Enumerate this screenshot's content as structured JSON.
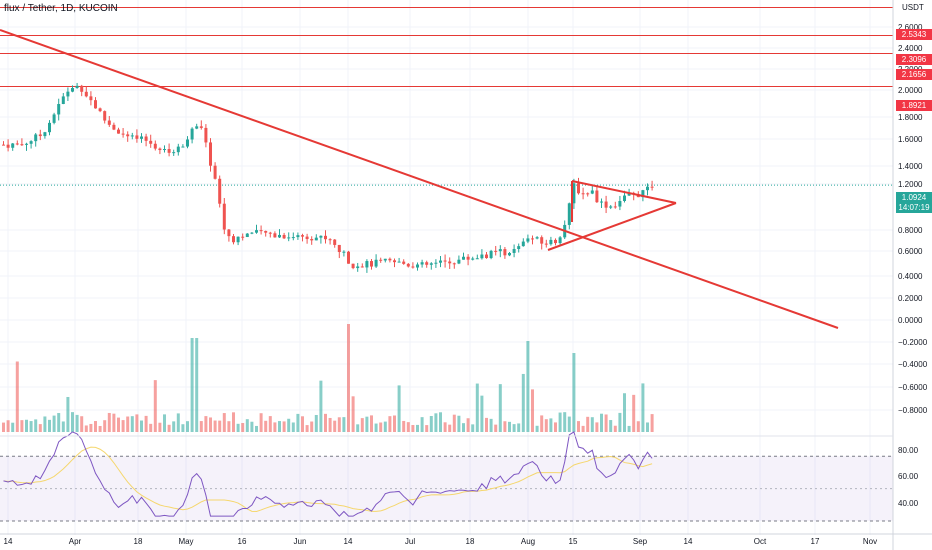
{
  "header": {
    "title": "flux / Tether, 1D, KUCOIN",
    "currency": "USDT"
  },
  "price_tags": {
    "level_1": {
      "label": "2.5343",
      "color": "#f23645"
    },
    "level_2": {
      "label": "2.3096",
      "color": "#f23645"
    },
    "level_3": {
      "label": "2.1656",
      "color": "#f23645"
    },
    "level_4": {
      "label": "1.8921",
      "color": "#f23645"
    },
    "last_price": {
      "label": "1.0924",
      "color": "#26a69a"
    },
    "countdown": {
      "label": "14:07:19",
      "color": "#26a69a"
    }
  },
  "colors": {
    "up": "#26a69a",
    "down": "#ef5350",
    "trendline": "#e53935",
    "rsi": "#7e57c2",
    "rsi_ma": "#f5d76e"
  },
  "chart_data": {
    "type": "candlestick",
    "price_axis_ticks": [
      "2.6000",
      "2.4000",
      "2.2000",
      "2.0000",
      "1.8000",
      "1.6000",
      "1.4000",
      "1.2000",
      "0.8000",
      "0.6000",
      "0.4000",
      "0.2000",
      "0.0000",
      "−0.2000",
      "−0.4000",
      "−0.6000",
      "−0.8000"
    ],
    "rsi_axis_ticks": [
      "80.00",
      "60.00",
      "40.00"
    ],
    "x_axis_ticks": [
      "14",
      "Apr",
      "18",
      "May",
      "16",
      "Jun",
      "14",
      "Jul",
      "18",
      "Aug",
      "15",
      "Sep",
      "14",
      "Oct",
      "17",
      "Nov"
    ],
    "horizontal_levels": [
      2.7,
      2.5343,
      2.3096,
      2.1656,
      1.8921
    ],
    "last_price": 1.0924,
    "rsi_bands": [
      70,
      30
    ]
  }
}
